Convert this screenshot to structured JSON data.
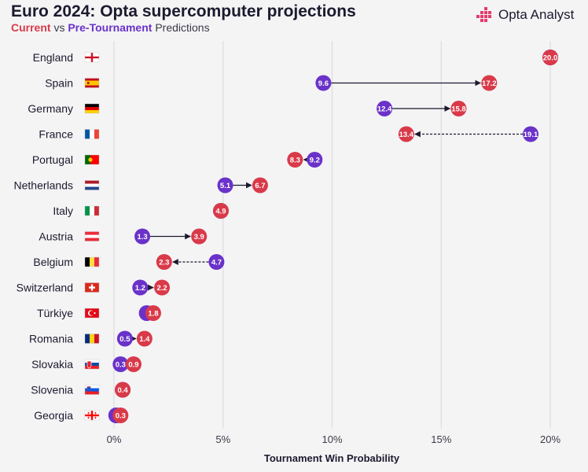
{
  "title": "Euro 2024: Opta supercomputer projections",
  "subtitle": {
    "current": "Current",
    "vs": " vs ",
    "pre": "Pre-Tournament",
    "rest": " Predictions"
  },
  "logo": {
    "text": "Opta Analyst",
    "icon": "opta-logo-icon",
    "color": "#e83a6b"
  },
  "colors": {
    "current": "#d93a49",
    "pre": "#6a32c9",
    "grid": "#dcdce0",
    "arrow": "#1b1a2e"
  },
  "chart_data": {
    "type": "scatter",
    "subtype": "dumbbell",
    "xlabel": "Tournament Win Probability",
    "xlim": [
      0,
      20
    ],
    "xticks": [
      "0%",
      "5%",
      "10%",
      "15%",
      "20%"
    ],
    "grid": true,
    "series": [
      {
        "name": "Current"
      },
      {
        "name": "Pre-Tournament"
      }
    ],
    "teams": [
      {
        "name": "England",
        "flag": "england-flag-icon",
        "current": 20.0,
        "pre": 20.0,
        "label_current": "20.0",
        "label_pre": ""
      },
      {
        "name": "Spain",
        "flag": "spain-flag-icon",
        "current": 17.2,
        "pre": 9.6,
        "label_current": "17.2",
        "label_pre": "9.6"
      },
      {
        "name": "Germany",
        "flag": "germany-flag-icon",
        "current": 15.8,
        "pre": 12.4,
        "label_current": "15.8",
        "label_pre": "12.4"
      },
      {
        "name": "France",
        "flag": "france-flag-icon",
        "current": 13.4,
        "pre": 19.1,
        "label_current": "13.4",
        "label_pre": "19.1"
      },
      {
        "name": "Portugal",
        "flag": "portugal-flag-icon",
        "current": 8.3,
        "pre": 9.2,
        "label_current": "8.3",
        "label_pre": "9.2"
      },
      {
        "name": "Netherlands",
        "flag": "netherlands-flag-icon",
        "current": 6.7,
        "pre": 5.1,
        "label_current": "6.7",
        "label_pre": "5.1"
      },
      {
        "name": "Italy",
        "flag": "italy-flag-icon",
        "current": 4.9,
        "pre": 4.9,
        "label_current": "4.9",
        "label_pre": ""
      },
      {
        "name": "Austria",
        "flag": "austria-flag-icon",
        "current": 3.9,
        "pre": 1.3,
        "label_current": "3.9",
        "label_pre": "1.3"
      },
      {
        "name": "Belgium",
        "flag": "belgium-flag-icon",
        "current": 2.3,
        "pre": 4.7,
        "label_current": "2.3",
        "label_pre": "4.7"
      },
      {
        "name": "Switzerland",
        "flag": "switzerland-flag-icon",
        "current": 2.2,
        "pre": 1.2,
        "label_current": "2.2",
        "label_pre": "1.2"
      },
      {
        "name": "Türkiye",
        "flag": "turkiye-flag-icon",
        "current": 1.8,
        "pre": 1.5,
        "label_current": "1.8",
        "label_pre": ""
      },
      {
        "name": "Romania",
        "flag": "romania-flag-icon",
        "current": 1.4,
        "pre": 0.5,
        "label_current": "1.4",
        "label_pre": "0.5"
      },
      {
        "name": "Slovakia",
        "flag": "slovakia-flag-icon",
        "current": 0.9,
        "pre": 0.3,
        "label_current": "0.9",
        "label_pre": "0.3"
      },
      {
        "name": "Slovenia",
        "flag": "slovenia-flag-icon",
        "current": 0.4,
        "pre": 0.4,
        "label_current": "0.4",
        "label_pre": ""
      },
      {
        "name": "Georgia",
        "flag": "georgia-flag-icon",
        "current": 0.3,
        "pre": 0.1,
        "label_current": "0.3",
        "label_pre": ""
      }
    ]
  }
}
